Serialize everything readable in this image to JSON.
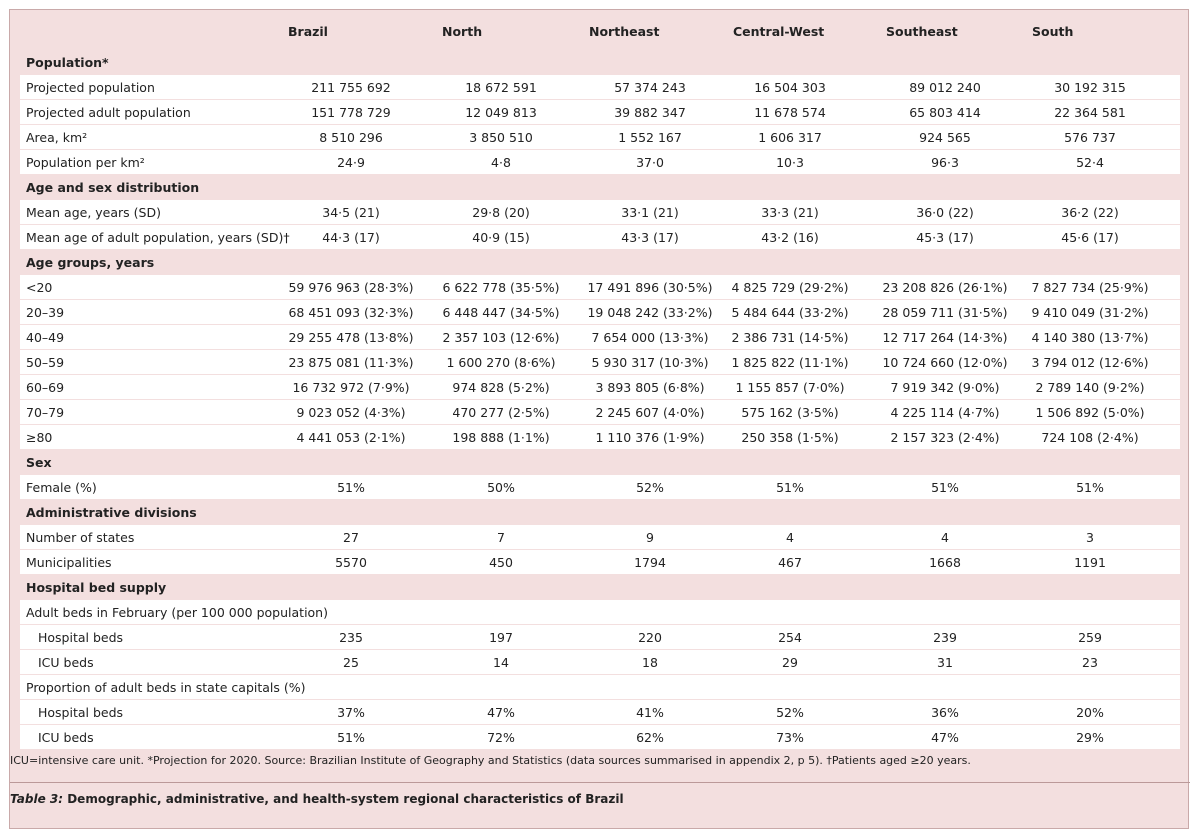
{
  "header": {
    "columns": [
      "Brazil",
      "North",
      "Northeast",
      "Central-West",
      "Southeast",
      "South"
    ]
  },
  "sections": [
    {
      "title": "Population*",
      "rows": [
        {
          "label": "Projected population",
          "values": [
            "211 755 692",
            "18 672 591",
            "57 374 243",
            "16 504 303",
            "89 012 240",
            "30 192 315"
          ]
        },
        {
          "label": "Projected adult population",
          "values": [
            "151 778 729",
            "12 049 813",
            "39 882 347",
            "11 678 574",
            "65 803 414",
            "22 364 581"
          ]
        },
        {
          "label": "Area, km²",
          "values": [
            "8 510 296",
            "3 850 510",
            "1 552 167",
            "1 606 317",
            "924 565",
            "576 737"
          ]
        },
        {
          "label": "Population per km²",
          "values": [
            "24·9",
            "4·8",
            "37·0",
            "10·3",
            "96·3",
            "52·4"
          ]
        }
      ]
    },
    {
      "title": "Age and sex distribution",
      "rows": [
        {
          "label": "Mean age, years (SD)",
          "values": [
            "34·5 (21)",
            "29·8 (20)",
            "33·1 (21)",
            "33·3 (21)",
            "36·0 (22)",
            "36·2 (22)"
          ]
        },
        {
          "label": "Mean age of adult population, years (SD)†",
          "values": [
            "44·3 (17)",
            "40·9 (15)",
            "43·3 (17)",
            "43·2 (16)",
            "45·3 (17)",
            "45·6 (17)"
          ]
        }
      ]
    },
    {
      "title": "Age groups, years",
      "rows": [
        {
          "label": "<20",
          "values": [
            "59 976 963 (28·3%)",
            "6 622 778 (35·5%)",
            "17 491 896 (30·5%)",
            "4 825 729 (29·2%)",
            "23 208 826 (26·1%)",
            "7 827 734 (25·9%)"
          ]
        },
        {
          "label": "20–39",
          "values": [
            "68 451 093 (32·3%)",
            "6 448 447 (34·5%)",
            "19 048 242 (33·2%)",
            "5 484 644 (33·2%)",
            "28 059 711 (31·5%)",
            "9 410 049 (31·2%)"
          ]
        },
        {
          "label": "40–49",
          "values": [
            "29 255 478 (13·8%)",
            "2 357 103 (12·6%)",
            "7 654 000 (13·3%)",
            "2 386 731 (14·5%)",
            "12 717 264 (14·3%)",
            "4 140 380 (13·7%)"
          ]
        },
        {
          "label": "50–59",
          "values": [
            "23 875 081 (11·3%)",
            "1 600 270 (8·6%)",
            "5 930 317 (10·3%)",
            "1 825 822 (11·1%)",
            "10 724 660 (12·0%)",
            "3 794 012 (12·6%)"
          ]
        },
        {
          "label": "60–69",
          "values": [
            "16 732 972 (7·9%)",
            "974 828 (5·2%)",
            "3 893 805 (6·8%)",
            "1 155 857 (7·0%)",
            "7 919 342 (9·0%)",
            "2 789 140 (9·2%)"
          ]
        },
        {
          "label": "70–79",
          "values": [
            "9 023 052 (4·3%)",
            "470 277 (2·5%)",
            "2 245 607 (4·0%)",
            "575 162 (3·5%)",
            "4 225 114 (4·7%)",
            "1 506 892 (5·0%)"
          ]
        },
        {
          "label": "≥80",
          "values": [
            "4 441 053 (2·1%)",
            "198 888 (1·1%)",
            "1 110 376 (1·9%)",
            "250 358 (1·5%)",
            "2 157 323 (2·4%)",
            "724 108 (2·4%)"
          ]
        }
      ]
    },
    {
      "title": "Sex",
      "rows": [
        {
          "label": "Female (%)",
          "values": [
            "51%",
            "50%",
            "52%",
            "51%",
            "51%",
            "51%"
          ]
        }
      ]
    },
    {
      "title": "Administrative divisions",
      "rows": [
        {
          "label": "Number of states",
          "values": [
            "27",
            "7",
            "9",
            "4",
            "4",
            "3"
          ]
        },
        {
          "label": "Municipalities",
          "values": [
            "5570",
            "450",
            "1794",
            "467",
            "1668",
            "1191"
          ]
        }
      ]
    },
    {
      "title": "Hospital bed supply",
      "rows": [
        {
          "label": "Adult beds in February (per 100 000 population)",
          "rows": [
            {
              "label": "Hospital beds",
              "values": [
                "235",
                "197",
                "220",
                "254",
                "239",
                "259"
              ]
            },
            {
              "label": "ICU beds",
              "values": [
                "25",
                "14",
                "18",
                "29",
                "31",
                "23"
              ]
            }
          ]
        },
        {
          "label": "Proportion of adult beds in state capitals (%)",
          "rows": [
            {
              "label": "Hospital beds",
              "values": [
                "37%",
                "47%",
                "41%",
                "52%",
                "36%",
                "20%"
              ]
            },
            {
              "label": "ICU beds",
              "values": [
                "51%",
                "72%",
                "62%",
                "73%",
                "47%",
                "29%"
              ]
            }
          ]
        }
      ]
    }
  ],
  "footnote": "ICU=intensive care unit. *Projection for 2020. Source: Brazilian Institute of Geography and Statistics (data sources summarised in appendix 2, p 5). †Patients aged ≥20 years.",
  "caption": {
    "label": "Table 3:",
    "text": "Demographic, administrative, and health-system regional characteristics of Brazil"
  }
}
